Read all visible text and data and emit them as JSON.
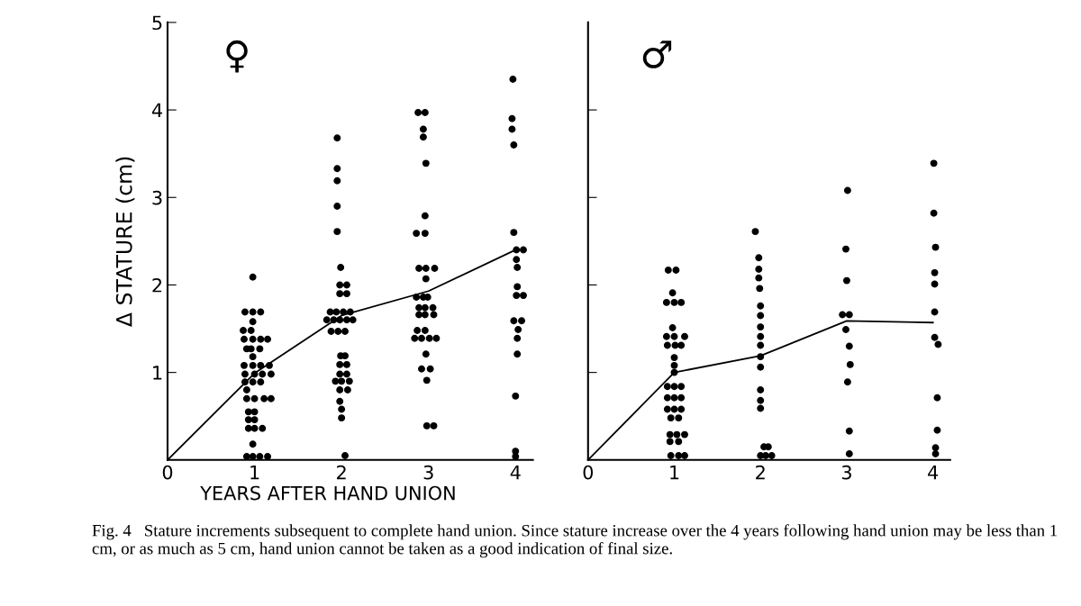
{
  "chart_data": [
    {
      "type": "scatter",
      "xlabel": "YEARS AFTER HAND UNION",
      "ylabel": "Δ STATURE (cm)",
      "xlim": [
        0,
        4.2
      ],
      "ylim": [
        0,
        5
      ],
      "xticks": [
        0,
        1,
        2,
        3,
        4
      ],
      "yticks": [
        1,
        2,
        3,
        4,
        5
      ],
      "grid": false,
      "legend": false,
      "annotations": [
        "♀",
        "Fig. 4   Stature increments subsequent to complete hand union. Since stature increase over the 4 years following hand union may be less than 1 cm, or as much as 5 cm, hand union cannot be taken as a good indication of final size."
      ],
      "series": [
        {
          "marker": "circle",
          "color": "#000000",
          "x": [
            0.98,
            0.89,
            0.98,
            1.07,
            0.98,
            0.87,
            0.96,
            0.88,
            0.98,
            1.07,
            1.15,
            0.91,
            0.96,
            1.06,
            0.98,
            0.88,
            0.98,
            1.07,
            1.17,
            0.89,
            1.0,
            1.09,
            1.19,
            0.89,
            0.98,
            1.07,
            0.91,
            0.91,
            1.0,
            1.11,
            1.19,
            0.93,
            1.0,
            0.93,
            1.0,
            0.93,
            1.0,
            1.09,
            0.98,
            0.91,
            0.98,
            1.06,
            1.15,
            1.95,
            1.95,
            1.95,
            1.95,
            1.95,
            1.99,
            1.98,
            2.06,
            1.98,
            2.06,
            1.87,
            1.94,
            2.02,
            2.1,
            1.83,
            1.91,
            1.98,
            2.06,
            2.13,
            1.88,
            1.96,
            2.04,
            1.99,
            2.04,
            1.98,
            2.06,
            1.98,
            2.06,
            1.93,
            2.0,
            2.09,
            1.98,
            2.07,
            1.98,
            2.0,
            2.0,
            2.04,
            2.88,
            2.96,
            2.94,
            2.94,
            2.97,
            2.96,
            2.86,
            2.96,
            2.89,
            2.97,
            3.07,
            2.97,
            2.86,
            2.94,
            2.99,
            2.89,
            2.96,
            3.05,
            2.89,
            2.96,
            3.06,
            2.87,
            2.96,
            2.84,
            2.92,
            3.01,
            3.09,
            2.97,
            2.92,
            3.02,
            2.98,
            2.98,
            3.06,
            3.97,
            3.96,
            3.96,
            3.98,
            3.98,
            4.01,
            4.09,
            4.01,
            4.02,
            4.02,
            4.01,
            4.09,
            3.98,
            4.07,
            4.03,
            4.02,
            4.02,
            4.0,
            4.0,
            4.0
          ],
          "values": [
            2.09,
            1.69,
            1.69,
            1.69,
            1.58,
            1.48,
            1.48,
            1.38,
            1.38,
            1.38,
            1.38,
            1.27,
            1.27,
            1.27,
            1.18,
            1.08,
            1.08,
            1.08,
            1.08,
            0.98,
            0.98,
            0.98,
            0.98,
            0.89,
            0.89,
            0.89,
            0.8,
            0.7,
            0.7,
            0.7,
            0.7,
            0.55,
            0.55,
            0.46,
            0.46,
            0.36,
            0.36,
            0.36,
            0.18,
            0.04,
            0.04,
            0.04,
            0.04,
            3.68,
            3.33,
            3.19,
            2.9,
            2.61,
            2.2,
            2.0,
            2.0,
            1.9,
            1.9,
            1.69,
            1.69,
            1.69,
            1.69,
            1.6,
            1.6,
            1.6,
            1.6,
            1.6,
            1.47,
            1.47,
            1.47,
            1.19,
            1.19,
            1.09,
            1.09,
            0.98,
            0.98,
            0.9,
            0.9,
            0.9,
            0.8,
            0.8,
            0.67,
            0.58,
            0.48,
            0.05,
            3.97,
            3.97,
            3.78,
            3.69,
            3.39,
            2.79,
            2.59,
            2.59,
            2.19,
            2.19,
            2.19,
            2.07,
            1.86,
            1.86,
            1.86,
            1.74,
            1.74,
            1.74,
            1.66,
            1.66,
            1.66,
            1.48,
            1.48,
            1.39,
            1.39,
            1.39,
            1.39,
            1.21,
            1.04,
            1.04,
            0.91,
            0.39,
            0.39,
            4.35,
            3.9,
            3.78,
            3.6,
            2.6,
            2.4,
            2.4,
            2.29,
            2.2,
            1.98,
            1.88,
            1.88,
            1.59,
            1.59,
            1.49,
            1.39,
            1.21,
            0.73,
            0.1,
            0.04
          ]
        },
        {
          "type": "line",
          "marker": "none",
          "line_style": "solid",
          "color": "#000000",
          "x": [
            0,
            1,
            2,
            3,
            4
          ],
          "values": [
            0,
            0.99,
            1.65,
            1.93,
            2.4
          ]
        }
      ]
    },
    {
      "type": "scatter",
      "xlim": [
        0,
        4.2
      ],
      "ylim": [
        0,
        5
      ],
      "xticks": [
        0,
        1,
        2,
        3,
        4
      ],
      "yticks": [
        1,
        2,
        3,
        4
      ],
      "tick_labels": "x",
      "grid": false,
      "legend": false,
      "annotations": [
        "♂"
      ],
      "series": [
        {
          "marker": "circle",
          "color": "#000000",
          "x": [
            0.93,
            1.02,
            0.98,
            0.91,
            1.0,
            1.08,
            0.98,
            0.91,
            1.0,
            1.12,
            0.92,
            1.01,
            1.08,
            1.0,
            1.0,
            1.0,
            0.92,
            1.0,
            1.08,
            0.92,
            1.0,
            1.08,
            0.92,
            1.0,
            1.08,
            0.96,
            1.05,
            0.95,
            1.03,
            1.12,
            0.95,
            1.05,
            0.96,
            1.05,
            1.12,
            1.94,
            1.98,
            1.98,
            1.98,
            1.99,
            2.0,
            2.0,
            2.0,
            2.0,
            2.0,
            2.0,
            2.0,
            2.0,
            2.0,
            2.0,
            2.04,
            2.09,
            2.0,
            2.06,
            2.13,
            3.01,
            2.99,
            3.0,
            2.95,
            3.03,
            2.99,
            3.03,
            3.04,
            3.01,
            3.03,
            3.03,
            4.01,
            4.01,
            4.03,
            4.02,
            4.02,
            4.02,
            4.02,
            4.06,
            4.05,
            4.05,
            4.03,
            4.03
          ],
          "values": [
            2.17,
            2.17,
            1.91,
            1.8,
            1.8,
            1.8,
            1.51,
            1.41,
            1.41,
            1.41,
            1.31,
            1.31,
            1.31,
            1.17,
            1.08,
            1.0,
            0.84,
            0.84,
            0.84,
            0.71,
            0.71,
            0.71,
            0.58,
            0.58,
            0.58,
            0.48,
            0.48,
            0.29,
            0.29,
            0.29,
            0.21,
            0.21,
            0.05,
            0.05,
            0.05,
            2.61,
            2.31,
            2.18,
            2.08,
            1.96,
            1.76,
            1.65,
            1.52,
            1.41,
            1.31,
            1.18,
            1.06,
            0.8,
            0.68,
            0.59,
            0.15,
            0.15,
            0.05,
            0.05,
            0.05,
            3.08,
            2.41,
            2.05,
            1.66,
            1.66,
            1.49,
            1.3,
            1.09,
            0.89,
            0.33,
            0.07,
            3.39,
            2.82,
            2.43,
            2.14,
            2.01,
            1.69,
            1.4,
            1.32,
            0.71,
            0.34,
            0.14,
            0.07
          ]
        },
        {
          "type": "line",
          "marker": "none",
          "line_style": "solid",
          "color": "#000000",
          "x": [
            0,
            1,
            2,
            3,
            4
          ],
          "values": [
            0,
            1.0,
            1.19,
            1.59,
            1.57
          ]
        }
      ]
    }
  ]
}
